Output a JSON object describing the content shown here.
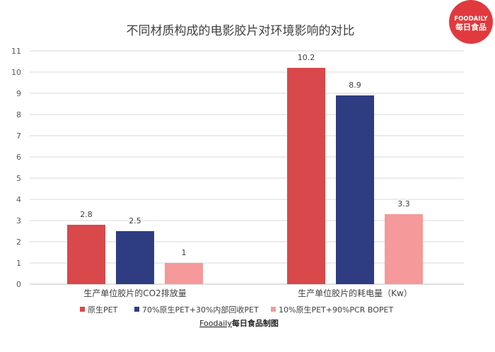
{
  "logo": {
    "line1": "FOODAILY",
    "line2": "每日食品",
    "color": "#e03a3e"
  },
  "footer": {
    "brand": "Foodaily",
    "suffix": "每日食品制图"
  },
  "chart_data": {
    "type": "bar",
    "title": "不同材质构成的电影胶片对环境影响的对比",
    "categories": [
      "生产单位胶片的CO2排放量",
      "生产单位胶片的耗电量（Kw）"
    ],
    "ylim": [
      0,
      11
    ],
    "yticks": [
      0,
      1,
      2,
      3,
      4,
      5,
      6,
      7,
      8,
      9,
      10,
      11
    ],
    "grid": true,
    "legend_position": "bottom",
    "series": [
      {
        "name": "原生PET",
        "values": [
          2.8,
          10.2
        ],
        "labels": [
          "2.8",
          "10.2"
        ],
        "color": "#d9484a"
      },
      {
        "name": "70%原生PET+30%内部回收PET",
        "values": [
          2.5,
          8.9
        ],
        "labels": [
          "2.5",
          "8.9"
        ],
        "color": "#2e3d82"
      },
      {
        "name": "10%原生PET+90%PCR BOPET",
        "values": [
          1,
          3.3
        ],
        "labels": [
          "1",
          "3.3"
        ],
        "color": "#f5999a"
      }
    ]
  }
}
